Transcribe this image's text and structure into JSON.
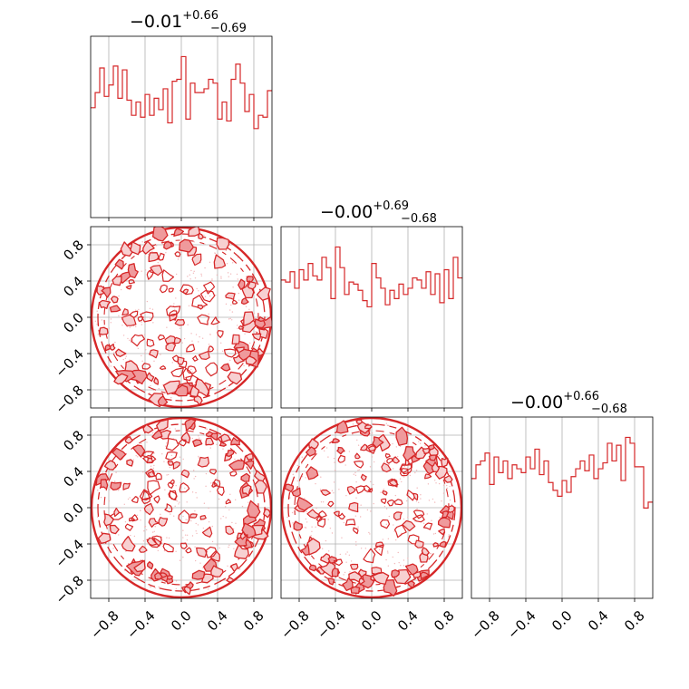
{
  "figure": {
    "type": "corner-plot"
  },
  "colors": {
    "line": "#d62728",
    "fill_outer": "#f7d0d1",
    "fill_inner": "#ef9a9c",
    "grid": "#b0b0b0",
    "axis": "#000000"
  },
  "chart_data": [
    {
      "type": "histogram",
      "panel": "diag-0",
      "title": {
        "main": "−0.01",
        "sup": "+0.66",
        "sub": "−0.69"
      },
      "xlim": [
        -1,
        1
      ],
      "x_ticks": [
        -0.8,
        -0.4,
        0.0,
        0.4,
        0.8
      ],
      "bins": 40,
      "values": [
        58,
        66,
        79,
        64,
        70,
        80,
        63,
        78,
        62,
        54,
        61,
        53,
        65,
        54,
        63,
        57,
        68,
        50,
        72,
        73,
        85,
        52,
        71,
        66,
        66,
        68,
        73,
        71,
        52,
        61,
        51,
        73,
        81,
        71,
        56,
        65,
        47,
        54,
        53,
        67
      ]
    },
    {
      "type": "histogram",
      "panel": "diag-1",
      "title": {
        "main": "−0.00",
        "sup": "+0.69",
        "sub": "−0.68"
      },
      "xlim": [
        -1,
        1
      ],
      "x_ticks": [
        -0.8,
        -0.4,
        0.0,
        0.4,
        0.8
      ],
      "bins": 40,
      "values": [
        62,
        61,
        66,
        58,
        67,
        62,
        70,
        64,
        62,
        73,
        68,
        53,
        78,
        68,
        55,
        61,
        60,
        57,
        52,
        49,
        70,
        63,
        58,
        50,
        57,
        53,
        60,
        55,
        58,
        63,
        62,
        58,
        66,
        55,
        65,
        51,
        67,
        53,
        73,
        63
      ]
    },
    {
      "type": "histogram",
      "panel": "diag-2",
      "title": {
        "main": "−0.00",
        "sup": "+0.66",
        "sub": "−0.68"
      },
      "xlim": [
        -1,
        1
      ],
      "x_ticks": [
        -0.8,
        -0.4,
        0.0,
        0.4,
        0.8
      ],
      "bins": 40,
      "values": [
        61,
        68,
        70,
        74,
        58,
        72,
        64,
        70,
        61,
        68,
        66,
        64,
        72,
        66,
        76,
        63,
        70,
        59,
        55,
        52,
        60,
        54,
        62,
        66,
        70,
        65,
        73,
        61,
        66,
        69,
        79,
        70,
        78,
        60,
        82,
        79,
        67,
        67,
        46,
        49
      ]
    },
    {
      "type": "contour-2d",
      "panel": "row1-col0",
      "support": "uniform disk of radius 1",
      "xlim": [
        -1,
        1
      ],
      "ylim": [
        -1,
        1
      ],
      "y_ticks": [
        -0.8,
        -0.4,
        0.0,
        0.4,
        0.8
      ]
    },
    {
      "type": "contour-2d",
      "panel": "row2-col0",
      "support": "uniform disk of radius 1",
      "xlim": [
        -1,
        1
      ],
      "ylim": [
        -1,
        1
      ],
      "x_ticks": [
        -0.8,
        -0.4,
        0.0,
        0.4,
        0.8
      ],
      "y_ticks": [
        -0.8,
        -0.4,
        0.0,
        0.4,
        0.8
      ]
    },
    {
      "type": "contour-2d",
      "panel": "row2-col1",
      "support": "uniform disk of radius 1",
      "xlim": [
        -1,
        1
      ],
      "ylim": [
        -1,
        1
      ],
      "x_ticks": [
        -0.8,
        -0.4,
        0.0,
        0.4,
        0.8
      ]
    }
  ],
  "tick_labels": [
    "−0.8",
    "−0.4",
    "0.0",
    "0.4",
    "0.8"
  ]
}
